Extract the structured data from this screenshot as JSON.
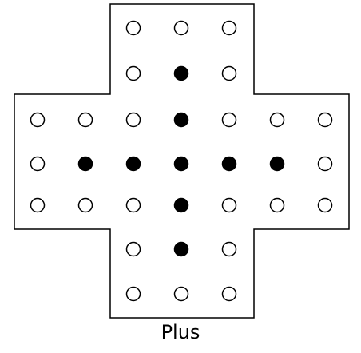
{
  "puzzle": {
    "name": "Plus",
    "layout": "english-cross-33",
    "colors": {
      "outline": "#000000",
      "peg": "#000000",
      "hole_fill": "#ffffff",
      "background": "#ffffff"
    },
    "rows": [
      "  ooo  ",
      "  oxo  ",
      "oooxooo",
      "oxxxxxo",
      "oooxooo",
      "  oxo  ",
      "  ooo  "
    ],
    "legend": {
      "x": "peg",
      "o": "empty-hole",
      " ": "off-board"
    }
  }
}
